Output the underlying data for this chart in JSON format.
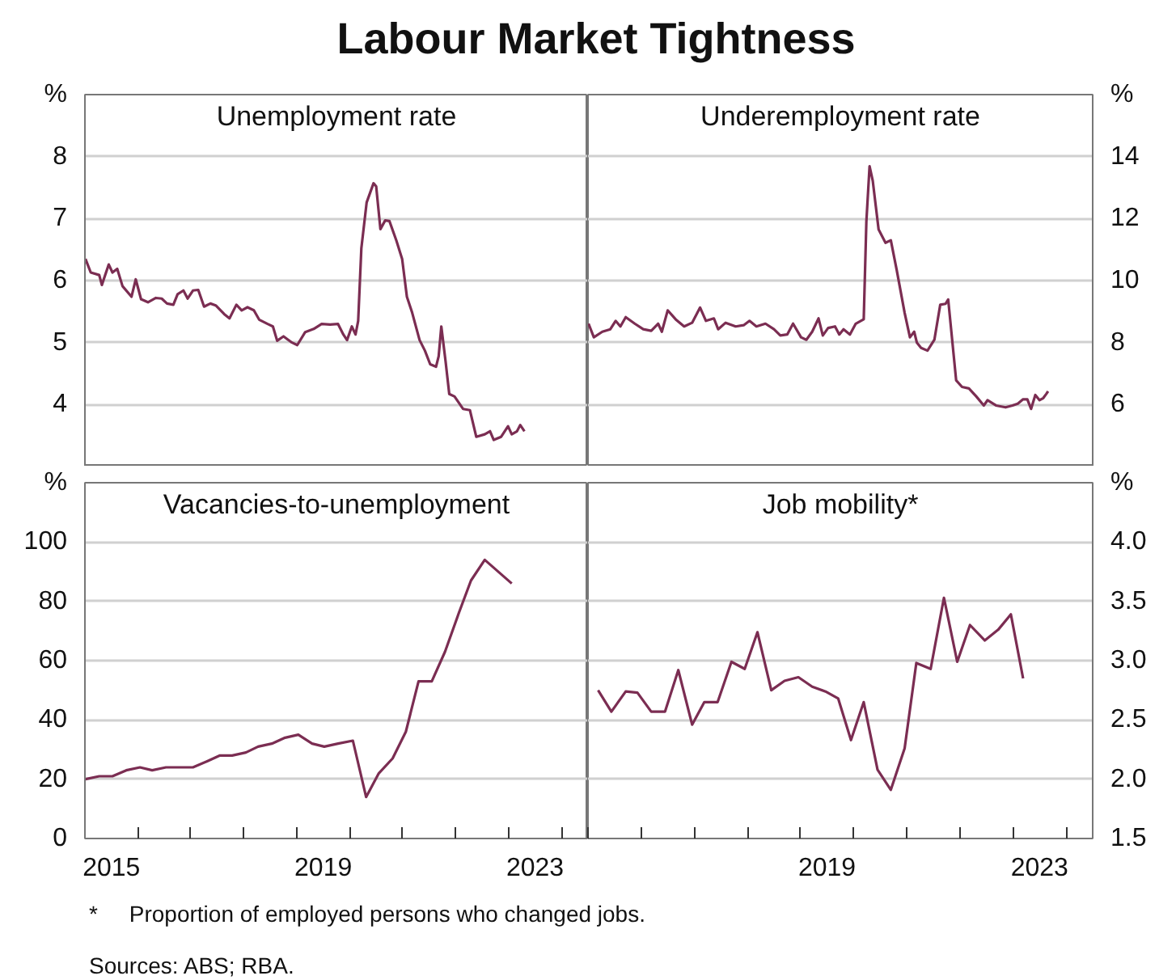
{
  "chart_data": [
    {
      "type": "other",
      "title": "Labour Market Tightness"
    },
    {
      "type": "line",
      "title": "Unemployment rate",
      "xlim": [
        2015,
        2024.5
      ],
      "ylim": [
        3,
        9
      ],
      "yticks": [
        4,
        5,
        6,
        7,
        8,
        {
          "value": 9,
          "label": "%"
        }
      ],
      "grid": "y",
      "tick_labels": "y",
      "x": [
        2015.01,
        2015.11,
        2015.27,
        2015.32,
        2015.45,
        2015.52,
        2015.61,
        2015.71,
        2015.88,
        2015.96,
        2016.06,
        2016.19,
        2016.34,
        2016.45,
        2016.55,
        2016.67,
        2016.75,
        2016.86,
        2016.94,
        2017.04,
        2017.14,
        2017.25,
        2017.37,
        2017.47,
        2017.63,
        2017.73,
        2017.86,
        2017.96,
        2018.07,
        2018.19,
        2018.29,
        2018.45,
        2018.55,
        2018.63,
        2018.75,
        2018.91,
        2019.01,
        2019.16,
        2019.32,
        2019.47,
        2019.63,
        2019.78,
        2019.88,
        2019.95,
        2020.04,
        2020.11,
        2020.16,
        2020.22,
        2020.32,
        2020.45,
        2020.5,
        2020.58,
        2020.67,
        2020.75,
        2020.88,
        2020.99,
        2021.08,
        2021.18,
        2021.32,
        2021.42,
        2021.52,
        2021.63,
        2021.68,
        2021.73,
        2021.81,
        2021.88,
        2021.98,
        2022.14,
        2022.27,
        2022.39,
        2022.55,
        2022.65,
        2022.72,
        2022.86,
        2022.99,
        2023.06,
        2023.16,
        2023.22,
        2023.3
      ],
      "series": [
        {
          "color": "#7b2d52",
          "values": [
            6.35,
            6.13,
            6.09,
            5.93,
            6.26,
            6.13,
            6.19,
            5.91,
            5.74,
            6.02,
            5.7,
            5.65,
            5.72,
            5.71,
            5.63,
            5.61,
            5.78,
            5.84,
            5.71,
            5.84,
            5.85,
            5.58,
            5.63,
            5.6,
            5.46,
            5.39,
            5.61,
            5.52,
            5.57,
            5.52,
            5.37,
            5.3,
            5.26,
            5.03,
            5.1,
            5.0,
            4.96,
            5.17,
            5.22,
            5.3,
            5.29,
            5.3,
            5.13,
            5.04,
            5.26,
            5.13,
            5.35,
            6.52,
            7.26,
            7.57,
            7.52,
            6.83,
            6.97,
            6.96,
            6.65,
            6.35,
            5.74,
            5.48,
            5.04,
            4.87,
            4.65,
            4.61,
            4.78,
            5.26,
            4.7,
            4.17,
            4.13,
            3.93,
            3.91,
            3.48,
            3.52,
            3.57,
            3.43,
            3.48,
            3.65,
            3.52,
            3.57,
            3.67,
            3.57
          ]
        }
      ]
    },
    {
      "type": "line",
      "title": "Underemployment rate",
      "xlim": [
        2015,
        2024.5
      ],
      "y2lim": [
        4,
        16
      ],
      "y2ticks": [
        6,
        8,
        10,
        12,
        14,
        {
          "value": 16,
          "label": "%"
        }
      ],
      "grid": "y",
      "tick_labels": "y",
      "x": [
        2015.01,
        2015.11,
        2015.27,
        2015.42,
        2015.52,
        2015.61,
        2015.71,
        2015.88,
        2016.04,
        2016.19,
        2016.32,
        2016.39,
        2016.5,
        2016.65,
        2016.81,
        2016.96,
        2017.11,
        2017.22,
        2017.37,
        2017.45,
        2017.59,
        2017.78,
        2017.93,
        2018.04,
        2018.17,
        2018.34,
        2018.5,
        2018.62,
        2018.75,
        2018.86,
        2019.01,
        2019.11,
        2019.22,
        2019.34,
        2019.42,
        2019.52,
        2019.65,
        2019.73,
        2019.81,
        2019.93,
        2020.04,
        2020.19,
        2020.24,
        2020.3,
        2020.36,
        2020.47,
        2020.6,
        2020.7,
        2020.81,
        2020.96,
        2021.06,
        2021.14,
        2021.19,
        2021.27,
        2021.39,
        2021.52,
        2021.63,
        2021.73,
        2021.78,
        2021.93,
        2022.04,
        2022.17,
        2022.31,
        2022.45,
        2022.52,
        2022.68,
        2022.86,
        2022.99,
        2023.09,
        2023.19,
        2023.27,
        2023.34,
        2023.42,
        2023.5,
        2023.57,
        2023.63,
        2023.66
      ],
      "series": [
        {
          "color": "#7b2d52",
          "axis": "y2",
          "values": [
            8.61,
            8.17,
            8.35,
            8.43,
            8.7,
            8.52,
            8.82,
            8.61,
            8.43,
            8.38,
            8.61,
            8.35,
            9.04,
            8.75,
            8.52,
            8.64,
            9.13,
            8.7,
            8.78,
            8.43,
            8.64,
            8.52,
            8.56,
            8.7,
            8.52,
            8.61,
            8.43,
            8.23,
            8.26,
            8.61,
            8.17,
            8.09,
            8.35,
            8.78,
            8.23,
            8.47,
            8.52,
            8.26,
            8.43,
            8.26,
            8.61,
            8.75,
            11.91,
            13.69,
            13.22,
            11.65,
            11.22,
            11.3,
            10.35,
            8.96,
            8.17,
            8.35,
            8.0,
            7.83,
            7.74,
            8.09,
            9.22,
            9.25,
            9.39,
            6.78,
            6.57,
            6.52,
            6.26,
            5.97,
            6.14,
            5.97,
            5.91,
            5.97,
            6.03,
            6.17,
            6.17,
            5.86,
            6.31,
            6.14,
            6.21,
            6.35,
            6.43
          ]
        }
      ]
    },
    {
      "type": "line",
      "title": "Vacancies-to-unemployment",
      "xlim": [
        2015,
        2024.5
      ],
      "ylim": [
        0,
        120
      ],
      "yticks": [
        0,
        20,
        40,
        60,
        80,
        100,
        {
          "value": 120,
          "label": "%"
        }
      ],
      "grid": "y",
      "xticks": [
        {
          "value": 2015,
          "label": null
        },
        {
          "value": 2016,
          "label": null
        },
        {
          "value": 2017,
          "label": null
        },
        {
          "value": 2018,
          "label": null
        },
        {
          "value": 2019,
          "label": null
        },
        {
          "value": 2020,
          "label": null
        },
        {
          "value": 2021,
          "label": null
        },
        {
          "value": 2022,
          "label": null
        },
        {
          "value": 2023,
          "label": null
        },
        {
          "value": 2024,
          "label": null
        },
        {
          "value": 2015.5,
          "label": "2015"
        },
        {
          "value": 2019.5,
          "label": "2019"
        },
        {
          "value": 2023.5,
          "label": "2023"
        }
      ],
      "x": [
        2015.01,
        2015.27,
        2015.52,
        2015.78,
        2016.04,
        2016.27,
        2016.53,
        2016.78,
        2017.04,
        2017.3,
        2017.55,
        2017.78,
        2018.04,
        2018.27,
        2018.53,
        2018.78,
        2019.03,
        2019.29,
        2019.52,
        2019.78,
        2020.06,
        2020.31,
        2020.55,
        2020.81,
        2021.06,
        2021.3,
        2021.55,
        2021.8,
        2022.06,
        2022.29,
        2022.55,
        2023.06
      ],
      "series": [
        {
          "color": "#7b2d52",
          "values": [
            20,
            21,
            21,
            23,
            24,
            23,
            24,
            24,
            24,
            26,
            28,
            28,
            29,
            31,
            32,
            34,
            35,
            32,
            31,
            32,
            33,
            14,
            22,
            27,
            36,
            53,
            53,
            63,
            76,
            87,
            94,
            86
          ]
        }
      ]
    },
    {
      "type": "line",
      "title": "Job mobility*",
      "xlim": [
        2015,
        2024.5
      ],
      "y2lim": [
        1.5,
        4.5
      ],
      "y2ticks": [
        1.5,
        {
          "value": 2,
          "label": "2.0"
        },
        2.5,
        {
          "value": 3,
          "label": "3.0"
        },
        3.5,
        {
          "value": 4,
          "label": "4.0"
        },
        {
          "value": 4.5,
          "label": "%"
        }
      ],
      "grid": "y",
      "xticks": [
        {
          "value": 2015,
          "label": null
        },
        {
          "value": 2016,
          "label": null
        },
        {
          "value": 2017,
          "label": null
        },
        {
          "value": 2018,
          "label": null
        },
        {
          "value": 2019,
          "label": null
        },
        {
          "value": 2020,
          "label": null
        },
        {
          "value": 2021,
          "label": null
        },
        {
          "value": 2022,
          "label": null
        },
        {
          "value": 2023,
          "label": null
        },
        {
          "value": 2024,
          "label": null
        },
        {
          "value": 2019.5,
          "label": "2019"
        },
        {
          "value": 2023.5,
          "label": "2023"
        }
      ],
      "x": [
        2015.19,
        2015.44,
        2015.71,
        2015.93,
        2016.19,
        2016.45,
        2016.7,
        2016.96,
        2017.19,
        2017.44,
        2017.7,
        2017.95,
        2018.19,
        2018.45,
        2018.7,
        2018.96,
        2019.22,
        2019.47,
        2019.71,
        2019.95,
        2020.19,
        2020.45,
        2020.7,
        2020.96,
        2021.18,
        2021.45,
        2021.7,
        2021.95,
        2022.19,
        2022.47,
        2022.72,
        2022.96,
        2023.19
      ],
      "series": [
        {
          "color": "#7b2d52",
          "axis": "y2",
          "values": [
            2.75,
            2.57,
            2.74,
            2.73,
            2.57,
            2.57,
            2.92,
            2.46,
            2.65,
            2.65,
            2.99,
            2.93,
            3.24,
            2.75,
            2.83,
            2.86,
            2.78,
            2.74,
            2.68,
            2.33,
            2.65,
            2.08,
            1.91,
            2.26,
            2.98,
            2.93,
            3.53,
            2.99,
            3.3,
            3.17,
            3.26,
            3.39,
            2.85
          ]
        }
      ]
    },
    {
      "type": "other",
      "annotations": [
        "*     Proportion of employed persons who changed jobs.",
        "Sources: ABS; RBA."
      ]
    }
  ]
}
